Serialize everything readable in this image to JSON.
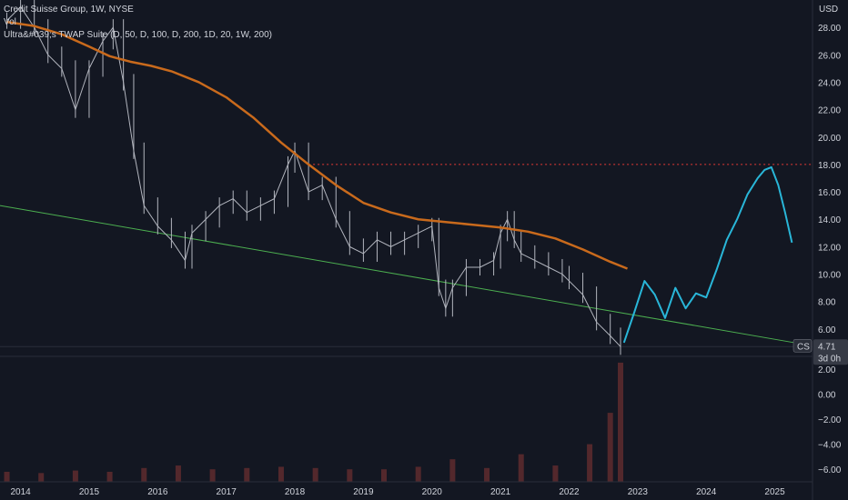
{
  "header": {
    "symbol_line": "Credit Suisse Group, 1W, NYSE",
    "vol_label": "Vol",
    "indicator_line": "Ultra&#039;s TWAP Suite (D, 50, D, 100, D, 200, 1D, 20, 1W, 200)"
  },
  "colors": {
    "background": "#131722",
    "price_bars": "#b2b5be",
    "twap_line": "#c96a1c",
    "projection": "#29b6d8",
    "trendline": "#4caf50",
    "resistance": "#e53935",
    "volume": "#5b2a2e"
  },
  "badge": {
    "symbol": "CS",
    "price": "4.71",
    "countdown": "3d 0h"
  },
  "chart_data": [
    {
      "type": "line",
      "y_axis_unit": "USD",
      "ylim": [
        4.0,
        30.0
      ],
      "yticks": [
        "28.00",
        "26.00",
        "24.00",
        "22.00",
        "20.00",
        "18.00",
        "16.00",
        "14.00",
        "12.00",
        "10.00",
        "8.00",
        "6.00"
      ],
      "xticks": [
        "2014",
        "2015",
        "2016",
        "2017",
        "2018",
        "2019",
        "2020",
        "2021",
        "2022",
        "2023",
        "2024",
        "2025"
      ],
      "xlim": [
        2013.7,
        2025.55
      ],
      "series": [
        {
          "kind": "price_weekly",
          "x": [
            2013.8,
            2014.0,
            2014.2,
            2014.4,
            2014.6,
            2014.8,
            2015.0,
            2015.2,
            2015.35,
            2015.5,
            2015.65,
            2015.8,
            2016.0,
            2016.2,
            2016.4,
            2016.5,
            2016.7,
            2016.9,
            2017.1,
            2017.3,
            2017.5,
            2017.7,
            2017.9,
            2018.0,
            2018.2,
            2018.4,
            2018.6,
            2018.8,
            2019.0,
            2019.2,
            2019.4,
            2019.6,
            2019.8,
            2020.0,
            2020.1,
            2020.2,
            2020.3,
            2020.5,
            2020.7,
            2020.9,
            2021.0,
            2021.1,
            2021.2,
            2021.3,
            2021.5,
            2021.7,
            2021.9,
            2022.0,
            2022.2,
            2022.4,
            2022.6,
            2022.75
          ],
          "close": [
            28.5,
            29.5,
            28.0,
            26.0,
            25.0,
            22.0,
            25.0,
            27.0,
            28.0,
            24.0,
            19.0,
            15.0,
            13.5,
            12.5,
            11.0,
            13.0,
            14.0,
            15.0,
            15.5,
            14.5,
            15.0,
            15.5,
            18.0,
            19.0,
            16.0,
            16.5,
            14.0,
            12.0,
            11.5,
            12.5,
            12.0,
            12.5,
            13.0,
            13.5,
            9.0,
            7.5,
            9.0,
            10.5,
            10.5,
            11.0,
            13.0,
            14.0,
            12.5,
            11.5,
            11.0,
            10.5,
            10.0,
            9.5,
            8.5,
            6.5,
            5.5,
            4.71
          ]
        },
        {
          "name": "",
          "kind": "twap",
          "x": [
            2013.8,
            2014.2,
            2014.6,
            2015.0,
            2015.3,
            2015.6,
            2015.9,
            2016.2,
            2016.6,
            2017.0,
            2017.4,
            2017.8,
            2018.2,
            2018.6,
            2019.0,
            2019.4,
            2019.8,
            2020.2,
            2020.6,
            2021.0,
            2021.4,
            2021.8,
            2022.2,
            2022.6,
            2022.85
          ],
          "y": [
            28.4,
            28.1,
            27.5,
            26.6,
            25.9,
            25.5,
            25.2,
            24.8,
            24.0,
            22.9,
            21.4,
            19.6,
            18.0,
            16.5,
            15.2,
            14.5,
            14.0,
            13.8,
            13.6,
            13.4,
            13.1,
            12.6,
            11.8,
            10.9,
            10.4
          ]
        },
        {
          "name": "",
          "kind": "projection",
          "x": [
            2022.8,
            2022.95,
            2023.1,
            2023.25,
            2023.4,
            2023.55,
            2023.7,
            2023.85,
            2024.0,
            2024.15,
            2024.3,
            2024.45,
            2024.6,
            2024.75,
            2024.85,
            2024.95,
            2025.05,
            2025.15,
            2025.25
          ],
          "y": [
            5.0,
            7.2,
            9.5,
            8.5,
            6.8,
            9.0,
            7.5,
            8.6,
            8.3,
            10.3,
            12.5,
            14.0,
            15.8,
            17.0,
            17.6,
            17.8,
            16.5,
            14.5,
            12.3
          ]
        },
        {
          "kind": "trendline",
          "x": [
            2013.7,
            2025.4
          ],
          "y": [
            15.0,
            4.9
          ]
        },
        {
          "kind": "resistance",
          "x": [
            2018.2,
            2025.55
          ],
          "y": [
            18.0,
            18.0
          ]
        }
      ]
    },
    {
      "type": "bar",
      "title": "Vol",
      "ylim": [
        -7.0,
        3.0
      ],
      "yticks": [
        "2.00",
        "0.00",
        "−2.00",
        "−4.00",
        "−6.00"
      ],
      "x": [
        2013.8,
        2014.3,
        2014.8,
        2015.3,
        2015.8,
        2016.3,
        2016.8,
        2017.3,
        2017.8,
        2018.3,
        2018.8,
        2019.3,
        2019.8,
        2020.3,
        2020.8,
        2021.3,
        2021.8,
        2022.3,
        2022.6,
        2022.75
      ],
      "values": [
        -6.2,
        -6.3,
        -6.1,
        -6.2,
        -5.9,
        -5.7,
        -6.0,
        -5.9,
        -5.8,
        -5.9,
        -6.0,
        -6.0,
        -5.8,
        -5.2,
        -5.9,
        -4.8,
        -5.7,
        -4.0,
        -1.5,
        2.5
      ]
    }
  ]
}
